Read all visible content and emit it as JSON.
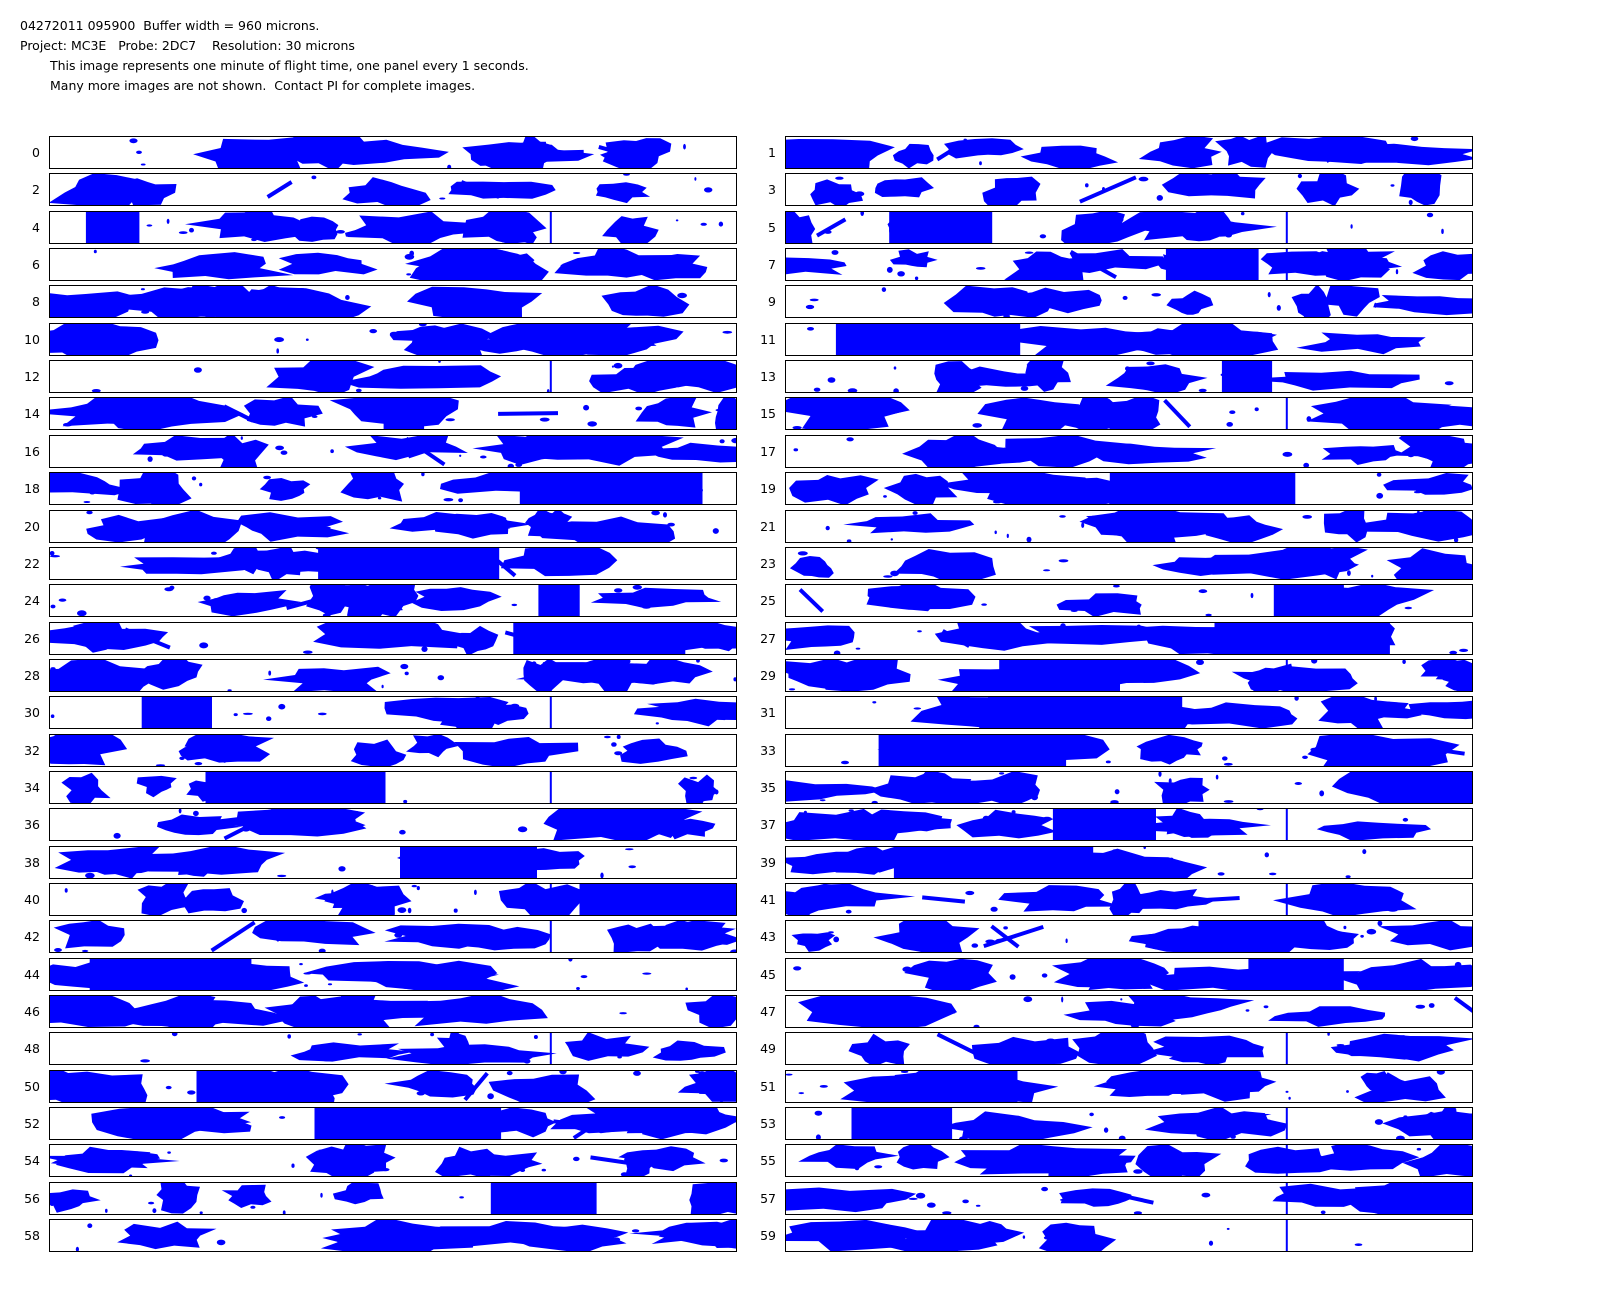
{
  "header": {
    "line1": "04272011 095900  Buffer width = 960 microns.",
    "line2": "Project: MC3E   Probe: 2DC7    Resolution: 30 microns",
    "line3": "This image represents one minute of flight time, one panel every 1 seconds.",
    "line4": "Many more images are not shown.  Contact PI for complete images."
  },
  "colors": {
    "particle": "#0000ff",
    "background": "#ffffff",
    "border": "#000000"
  },
  "panels": [
    {
      "label": "0"
    },
    {
      "label": "1"
    },
    {
      "label": "2"
    },
    {
      "label": "3"
    },
    {
      "label": "4"
    },
    {
      "label": "5"
    },
    {
      "label": "6"
    },
    {
      "label": "7"
    },
    {
      "label": "8"
    },
    {
      "label": "9"
    },
    {
      "label": "10"
    },
    {
      "label": "11"
    },
    {
      "label": "12"
    },
    {
      "label": "13"
    },
    {
      "label": "14"
    },
    {
      "label": "15"
    },
    {
      "label": "16"
    },
    {
      "label": "17"
    },
    {
      "label": "18"
    },
    {
      "label": "19"
    },
    {
      "label": "20"
    },
    {
      "label": "21"
    },
    {
      "label": "22"
    },
    {
      "label": "23"
    },
    {
      "label": "24"
    },
    {
      "label": "25"
    },
    {
      "label": "26"
    },
    {
      "label": "27"
    },
    {
      "label": "28"
    },
    {
      "label": "29"
    },
    {
      "label": "30"
    },
    {
      "label": "31"
    },
    {
      "label": "32"
    },
    {
      "label": "33"
    },
    {
      "label": "34"
    },
    {
      "label": "35"
    },
    {
      "label": "36"
    },
    {
      "label": "37"
    },
    {
      "label": "38"
    },
    {
      "label": "39"
    },
    {
      "label": "40"
    },
    {
      "label": "41"
    },
    {
      "label": "42"
    },
    {
      "label": "43"
    },
    {
      "label": "44"
    },
    {
      "label": "45"
    },
    {
      "label": "46"
    },
    {
      "label": "47"
    },
    {
      "label": "48"
    },
    {
      "label": "49"
    },
    {
      "label": "50"
    },
    {
      "label": "51"
    },
    {
      "label": "52"
    },
    {
      "label": "53"
    },
    {
      "label": "54"
    },
    {
      "label": "55"
    },
    {
      "label": "56"
    },
    {
      "label": "57"
    },
    {
      "label": "58"
    },
    {
      "label": "59"
    }
  ]
}
